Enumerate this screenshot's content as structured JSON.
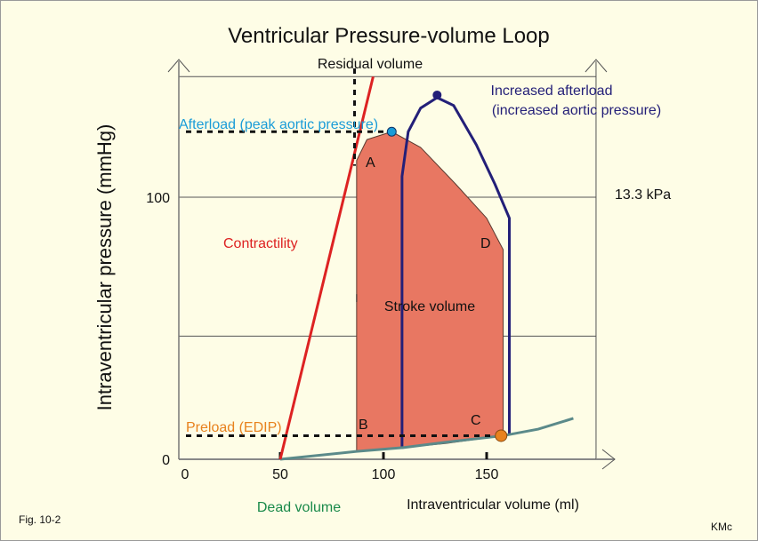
{
  "title": "Ventricular Pressure-volume Loop",
  "fig_label": "Fig. 10-2",
  "author": "KMc",
  "chart_data": {
    "type": "line",
    "xlabel": "Intraventricular volume (ml)",
    "ylabel": "Intraventricular pressure (mmHg)",
    "xlim": [
      0,
      203
    ],
    "ylim": [
      0,
      146
    ],
    "x_ticks": [
      0,
      50,
      100,
      150
    ],
    "y_ticks": [
      0,
      100
    ],
    "y_gridlines": [
      0,
      47,
      100,
      146
    ],
    "right_axis_label": "13.3 kPa",
    "colors": {
      "loop_fill": "#e87762",
      "increased_afterload": "#231f78",
      "contractility": "#dd2222",
      "edpvr": "#5b8a8a",
      "afterload": "#1a9cd8",
      "preload": "#e8821e",
      "dead_volume": "#1a8a4a"
    },
    "normal_loop": {
      "points": [
        [
          87,
          3
        ],
        [
          87,
          114
        ],
        [
          92,
          122
        ],
        [
          104,
          125
        ],
        [
          118,
          119
        ],
        [
          135,
          105
        ],
        [
          150,
          92
        ],
        [
          158,
          80
        ],
        [
          158,
          9
        ],
        [
          130,
          6
        ],
        [
          110,
          4.5
        ],
        [
          87,
          3
        ]
      ],
      "fill": true
    },
    "increased_afterload_loop": {
      "points": [
        [
          109,
          4
        ],
        [
          109,
          108
        ],
        [
          112,
          125
        ],
        [
          118,
          134
        ],
        [
          126,
          138
        ],
        [
          134,
          135
        ],
        [
          145,
          120
        ],
        [
          154,
          105
        ],
        [
          161,
          92
        ],
        [
          161,
          9.5
        ]
      ]
    },
    "contractility_line": {
      "points": [
        [
          50,
          0
        ],
        [
          95,
          146
        ]
      ]
    },
    "edpvr_curve": {
      "points": [
        [
          50,
          0
        ],
        [
          87,
          3
        ],
        [
          110,
          4.5
        ],
        [
          130,
          6.5
        ],
        [
          158,
          9
        ],
        [
          175,
          11.5
        ],
        [
          192,
          15.6
        ]
      ]
    },
    "afterload_point": [
      104,
      125
    ],
    "peak_increased_point": [
      126,
      139
    ],
    "preload_point": [
      157,
      9
    ],
    "residual_volume_x": 86,
    "annotations": {
      "residual": "Residual volume",
      "afterload": "Afterload (peak aortic pressure)",
      "increased1": "Increased afterload",
      "increased2": "(increased aortic pressure)",
      "contractility": "Contractility",
      "stroke": "Stroke volume",
      "preload": "Preload (EDIP)",
      "dead": "Dead volume",
      "A": "A",
      "B": "B",
      "C": "C",
      "D": "D"
    }
  }
}
